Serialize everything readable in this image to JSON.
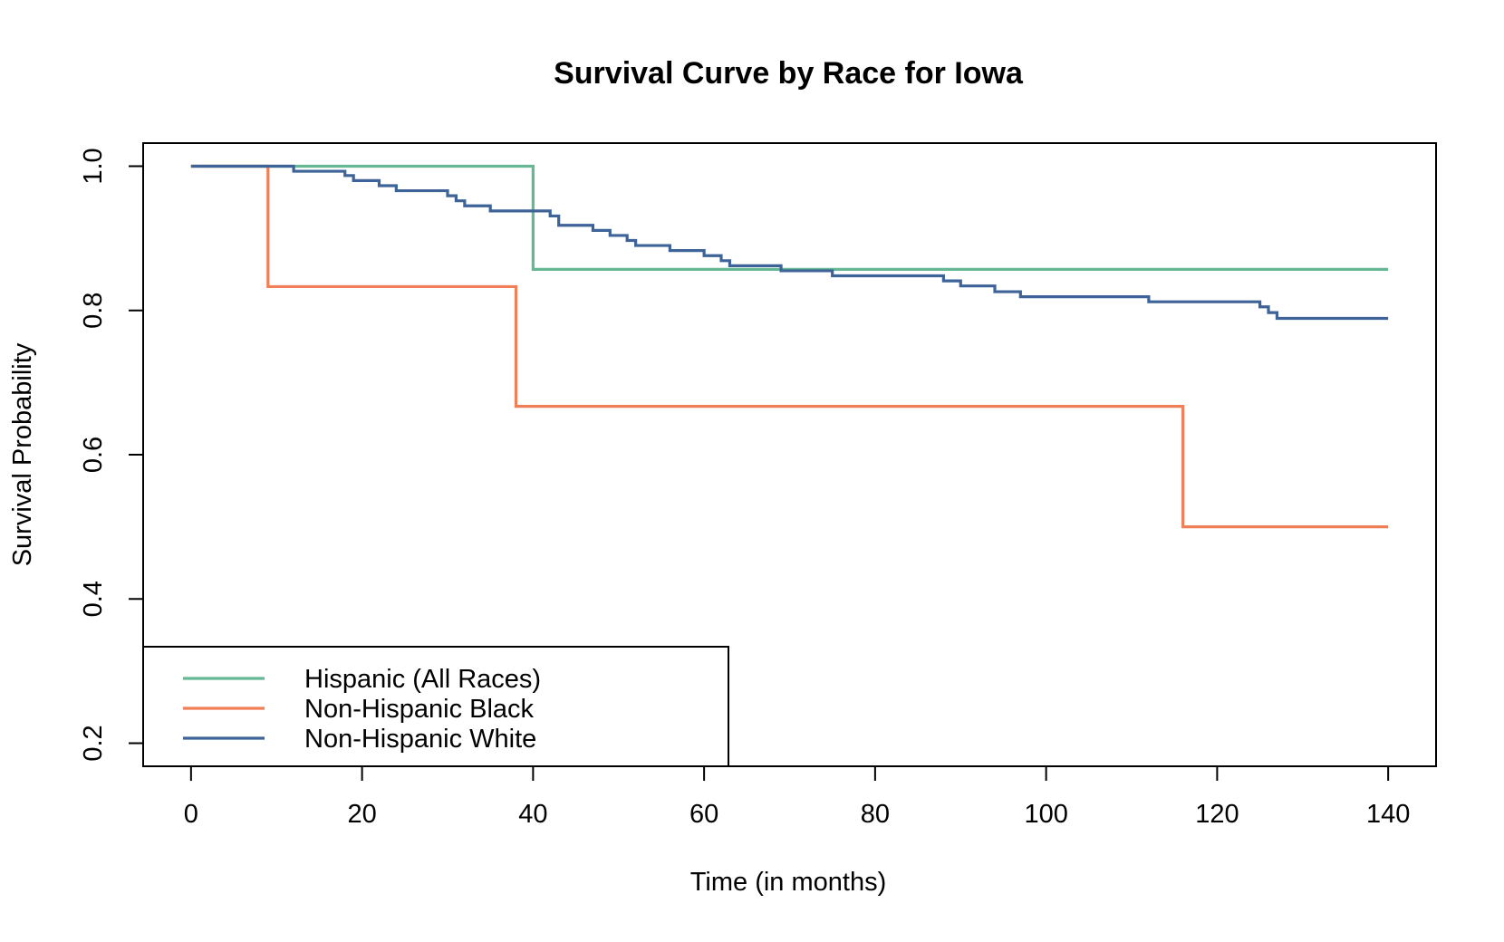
{
  "chart_data": {
    "type": "line",
    "step": true,
    "title": "Survival Curve by Race for Iowa",
    "xlabel": "Time (in months)",
    "ylabel": "Survival Probability",
    "xlim": [
      -5.6,
      145.6
    ],
    "ylim": [
      0.168,
      1.032
    ],
    "xticks": [
      0,
      20,
      40,
      60,
      80,
      100,
      120,
      140
    ],
    "yticks": [
      0.2,
      0.4,
      0.6,
      0.8,
      1.0
    ],
    "xtick_labels": [
      "0",
      "20",
      "40",
      "60",
      "80",
      "100",
      "120",
      "140"
    ],
    "ytick_labels": [
      "0.2",
      "0.4",
      "0.6",
      "0.8",
      "1.0"
    ],
    "grid": false,
    "legend_position": "bottom-left",
    "series": [
      {
        "name": "Hispanic (All Races)",
        "color": "#66b895",
        "points": [
          [
            0,
            1.0
          ],
          [
            40,
            1.0
          ],
          [
            40,
            0.857
          ],
          [
            140,
            0.857
          ]
        ]
      },
      {
        "name": "Non-Hispanic Black",
        "color": "#f07f57",
        "points": [
          [
            0,
            1.0
          ],
          [
            9,
            1.0
          ],
          [
            9,
            0.833
          ],
          [
            38,
            0.833
          ],
          [
            38,
            0.667
          ],
          [
            116,
            0.667
          ],
          [
            116,
            0.5
          ],
          [
            140,
            0.5
          ]
        ]
      },
      {
        "name": "Non-Hispanic White",
        "color": "#3d6399",
        "points": [
          [
            0,
            1.0
          ],
          [
            12,
            1.0
          ],
          [
            12,
            0.993
          ],
          [
            18,
            0.993
          ],
          [
            18,
            0.987
          ],
          [
            19,
            0.987
          ],
          [
            19,
            0.98
          ],
          [
            22,
            0.98
          ],
          [
            22,
            0.973
          ],
          [
            24,
            0.973
          ],
          [
            24,
            0.966
          ],
          [
            30,
            0.966
          ],
          [
            30,
            0.959
          ],
          [
            31,
            0.959
          ],
          [
            31,
            0.952
          ],
          [
            32,
            0.952
          ],
          [
            32,
            0.945
          ],
          [
            35,
            0.945
          ],
          [
            35,
            0.938
          ],
          [
            42,
            0.938
          ],
          [
            42,
            0.931
          ],
          [
            43,
            0.931
          ],
          [
            43,
            0.918
          ],
          [
            47,
            0.918
          ],
          [
            47,
            0.911
          ],
          [
            49,
            0.911
          ],
          [
            49,
            0.904
          ],
          [
            51,
            0.904
          ],
          [
            51,
            0.897
          ],
          [
            52,
            0.897
          ],
          [
            52,
            0.89
          ],
          [
            56,
            0.89
          ],
          [
            56,
            0.883
          ],
          [
            60,
            0.883
          ],
          [
            60,
            0.876
          ],
          [
            62,
            0.876
          ],
          [
            62,
            0.869
          ],
          [
            63,
            0.869
          ],
          [
            63,
            0.862
          ],
          [
            69,
            0.862
          ],
          [
            69,
            0.855
          ],
          [
            75,
            0.855
          ],
          [
            75,
            0.848
          ],
          [
            88,
            0.848
          ],
          [
            88,
            0.841
          ],
          [
            90,
            0.841
          ],
          [
            90,
            0.834
          ],
          [
            94,
            0.834
          ],
          [
            94,
            0.826
          ],
          [
            97,
            0.826
          ],
          [
            97,
            0.819
          ],
          [
            112,
            0.819
          ],
          [
            112,
            0.812
          ],
          [
            125,
            0.812
          ],
          [
            125,
            0.805
          ],
          [
            126,
            0.805
          ],
          [
            126,
            0.797
          ],
          [
            127,
            0.797
          ],
          [
            127,
            0.789
          ],
          [
            140,
            0.789
          ]
        ]
      }
    ]
  }
}
